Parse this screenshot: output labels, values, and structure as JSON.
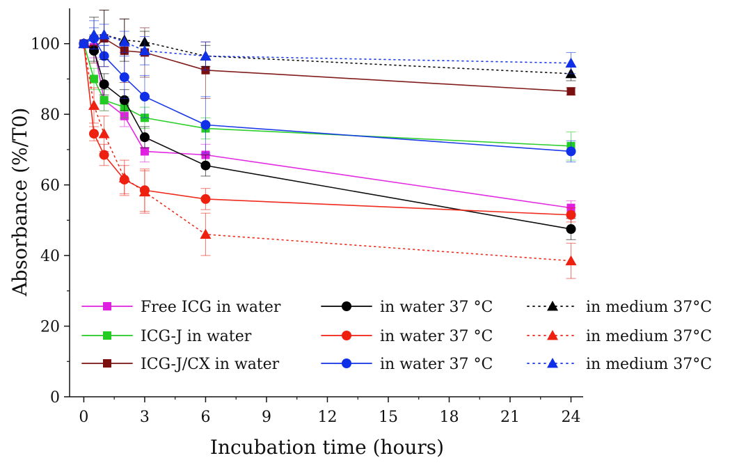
{
  "chart_data": {
    "type": "line",
    "xlabel": "Incubation time (hours)",
    "ylabel": "Absorbance (%/T0)",
    "xlim": [
      -0.7,
      24.6
    ],
    "ylim": [
      0,
      110
    ],
    "xticks": [
      0,
      3,
      6,
      9,
      12,
      15,
      18,
      21,
      24
    ],
    "yticks": [
      0,
      20,
      40,
      60,
      80,
      100
    ],
    "x_tick_labels": [
      "0",
      "3",
      "6",
      "9",
      "12",
      "15",
      "18",
      "21",
      "24"
    ],
    "y_tick_labels": [
      "0",
      "20",
      "40",
      "60",
      "80",
      "100"
    ],
    "grid": false,
    "legend_position": "bottom-left, three columns",
    "series": [
      {
        "name": "Free ICG in water",
        "marker": "square",
        "color": "#e020e0",
        "style": "solid",
        "x": [
          0,
          0.5,
          1,
          2,
          3,
          6,
          24
        ],
        "y": [
          100,
          99,
          84,
          79.5,
          69.5,
          68.5,
          53.5
        ],
        "err": [
          0,
          3,
          3,
          3,
          3,
          3,
          2
        ]
      },
      {
        "name": "ICG-J in water",
        "marker": "square",
        "color": "#22cc22",
        "style": "solid",
        "x": [
          0,
          0.5,
          1,
          2,
          3,
          6,
          24
        ],
        "y": [
          100,
          90,
          84,
          82,
          79,
          76,
          71
        ],
        "err": [
          0,
          3,
          3,
          3,
          3,
          3,
          4
        ]
      },
      {
        "name": "ICG-J/CX in water",
        "marker": "square",
        "color": "#7a1010",
        "style": "solid",
        "x": [
          0,
          0.5,
          1,
          2,
          3,
          6,
          24
        ],
        "y": [
          100,
          98.5,
          101.5,
          98,
          97.5,
          92.5,
          86.5
        ],
        "err": [
          0,
          4,
          8,
          9,
          7,
          8,
          1
        ]
      },
      {
        "name": "in water 37 °C",
        "marker": "circle",
        "color": "#000000",
        "style": "solid",
        "x": [
          0,
          0.5,
          1,
          2,
          3,
          6,
          24
        ],
        "y": [
          100,
          98,
          88.5,
          84,
          73.5,
          65.5,
          47.5
        ],
        "err": [
          0,
          3,
          3,
          3,
          3,
          3,
          3
        ]
      },
      {
        "name": "in water 37 °C",
        "marker": "circle",
        "color": "#ee2010",
        "style": "solid",
        "x": [
          0,
          0.5,
          1,
          2,
          3,
          6,
          24
        ],
        "y": [
          100,
          74.5,
          68.5,
          61.5,
          58.5,
          56,
          51.5
        ],
        "err": [
          0,
          2,
          3,
          4,
          6,
          3,
          2
        ]
      },
      {
        "name": "in water 37 °C",
        "marker": "circle",
        "color": "#1030e8",
        "style": "solid",
        "x": [
          0,
          0.5,
          1,
          2,
          3,
          6,
          24
        ],
        "y": [
          100,
          101.5,
          96.5,
          90.5,
          85,
          77,
          69.5
        ],
        "err": [
          0,
          3,
          3,
          6,
          6,
          8,
          3
        ]
      },
      {
        "name": "in medium 37°C",
        "marker": "triangle",
        "color": "#000000",
        "style": "dotted",
        "x": [
          0,
          0.5,
          1,
          2,
          3,
          6,
          24
        ],
        "y": [
          100,
          102.5,
          102.5,
          101,
          100.5,
          96.5,
          91.5
        ],
        "err": [
          0,
          5,
          7,
          6,
          3,
          3,
          2
        ]
      },
      {
        "name": "in medium 37°C",
        "marker": "triangle",
        "color": "#ee2010",
        "style": "dotted",
        "x": [
          0,
          0.5,
          1,
          2,
          3,
          6,
          24
        ],
        "y": [
          100,
          82.5,
          74.5,
          62,
          58,
          46,
          38.5
        ],
        "err": [
          0,
          5,
          5,
          5,
          6,
          6,
          5
        ]
      },
      {
        "name": "in medium 37°C",
        "marker": "triangle",
        "color": "#1030e8",
        "style": "dotted",
        "x": [
          0,
          0.5,
          1,
          2,
          3,
          6,
          24
        ],
        "y": [
          100,
          102.5,
          102.5,
          100.5,
          98,
          96.5,
          94.5
        ],
        "err": [
          0,
          4,
          3,
          3,
          4,
          4,
          3
        ]
      }
    ]
  }
}
